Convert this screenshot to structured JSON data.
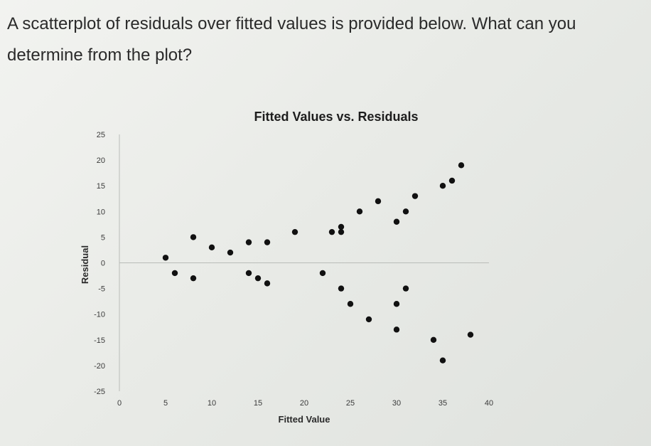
{
  "question": {
    "line1": "A scatterplot of residuals over fitted values is provided below. What can you",
    "line2": "determine from the plot?"
  },
  "chart_data": {
    "type": "scatter",
    "title": "Fitted Values vs. Residuals",
    "xlabel": "Fitted Value",
    "ylabel": "Residual",
    "xlim": [
      0,
      40
    ],
    "ylim": [
      -25,
      25
    ],
    "x_ticks": [
      0,
      5,
      10,
      15,
      20,
      25,
      30,
      35,
      40
    ],
    "y_ticks": [
      25,
      20,
      15,
      10,
      5,
      0,
      -5,
      -10,
      -15,
      -20,
      -25
    ],
    "grid": false,
    "point_color": "#111111",
    "points": [
      {
        "x": 5,
        "y": 1
      },
      {
        "x": 6,
        "y": -2
      },
      {
        "x": 8,
        "y": 5
      },
      {
        "x": 8,
        "y": -3
      },
      {
        "x": 10,
        "y": 3
      },
      {
        "x": 12,
        "y": 2
      },
      {
        "x": 14,
        "y": 4
      },
      {
        "x": 14,
        "y": -2
      },
      {
        "x": 15,
        "y": -3
      },
      {
        "x": 16,
        "y": 4
      },
      {
        "x": 16,
        "y": -4
      },
      {
        "x": 19,
        "y": 6
      },
      {
        "x": 22,
        "y": -2
      },
      {
        "x": 23,
        "y": 6
      },
      {
        "x": 24,
        "y": 6
      },
      {
        "x": 24,
        "y": 7
      },
      {
        "x": 24,
        "y": -5
      },
      {
        "x": 25,
        "y": -8
      },
      {
        "x": 26,
        "y": 10
      },
      {
        "x": 27,
        "y": -11
      },
      {
        "x": 28,
        "y": 12
      },
      {
        "x": 30,
        "y": 8
      },
      {
        "x": 30,
        "y": -8
      },
      {
        "x": 30,
        "y": -13
      },
      {
        "x": 31,
        "y": 10
      },
      {
        "x": 31,
        "y": -5
      },
      {
        "x": 32,
        "y": 13
      },
      {
        "x": 34,
        "y": -15
      },
      {
        "x": 35,
        "y": 15
      },
      {
        "x": 35,
        "y": -19
      },
      {
        "x": 36,
        "y": 16
      },
      {
        "x": 37,
        "y": 19
      },
      {
        "x": 38,
        "y": -14
      }
    ]
  }
}
